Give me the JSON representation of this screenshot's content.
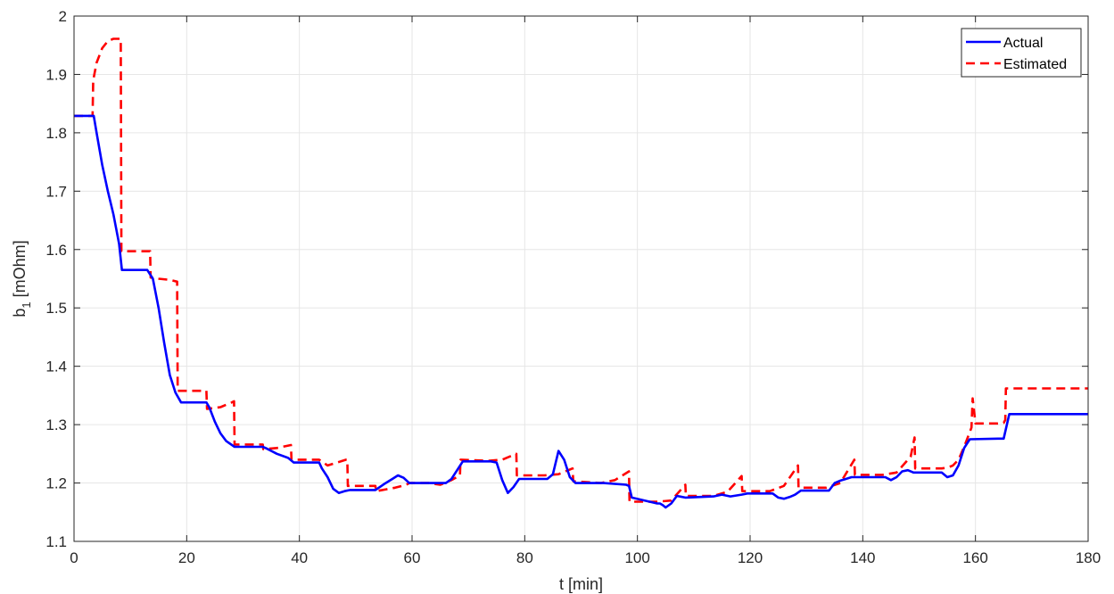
{
  "chart_data": {
    "type": "line",
    "xlabel": "t [min]",
    "ylabel_main": "b",
    "ylabel_sub": "1",
    "ylabel_unit": " [mOhm]",
    "xlim": [
      0,
      180
    ],
    "ylim": [
      1.1,
      2.0
    ],
    "xticks": [
      0,
      20,
      40,
      60,
      80,
      100,
      120,
      140,
      160,
      180
    ],
    "xtick_labels": [
      "0",
      "20",
      "40",
      "60",
      "80",
      "100",
      "120",
      "140",
      "160",
      "180"
    ],
    "yticks": [
      1.1,
      1.2,
      1.3,
      1.4,
      1.5,
      1.6,
      1.7,
      1.8,
      1.9,
      2.0
    ],
    "ytick_labels": [
      "1.1",
      "1.2",
      "1.3",
      "1.4",
      "1.5",
      "1.6",
      "1.7",
      "1.8",
      "1.9",
      "2"
    ],
    "grid": true,
    "legend_position": "top-right",
    "series": [
      {
        "name": "Actual",
        "color": "#0000ff",
        "style": "solid",
        "x": [
          0,
          3.5,
          4,
          5,
          6,
          7,
          8,
          8.5,
          13,
          14,
          15,
          16,
          17,
          18,
          19,
          23.5,
          24,
          25,
          26,
          27,
          28.5,
          33.5,
          34,
          36,
          38,
          39,
          43.5,
          44,
          45,
          46,
          47,
          48,
          49,
          53.5,
          55,
          56.5,
          57.5,
          58.5,
          59.5,
          64,
          65,
          66,
          67,
          68,
          69,
          74,
          75,
          76,
          77,
          78,
          79,
          84,
          85,
          86,
          87,
          88,
          89,
          94,
          98,
          98.5,
          99,
          103.5,
          104,
          104.5,
          105,
          106,
          107,
          108.5,
          113.5,
          115,
          116.5,
          118.5,
          119.5,
          124,
          125,
          126,
          127,
          128,
          129,
          134,
          135,
          136,
          137,
          138,
          139,
          144,
          145,
          146,
          147,
          148,
          149,
          150,
          154,
          155,
          156,
          157,
          158,
          159,
          164,
          165,
          166,
          180
        ],
        "y": [
          1.829,
          1.829,
          1.8,
          1.745,
          1.7,
          1.66,
          1.61,
          1.565,
          1.565,
          1.55,
          1.5,
          1.44,
          1.385,
          1.355,
          1.338,
          1.338,
          1.33,
          1.305,
          1.285,
          1.272,
          1.262,
          1.262,
          1.26,
          1.25,
          1.243,
          1.235,
          1.235,
          1.225,
          1.21,
          1.19,
          1.183,
          1.186,
          1.188,
          1.188,
          1.198,
          1.207,
          1.213,
          1.209,
          1.2,
          1.2,
          1.2,
          1.2,
          1.207,
          1.222,
          1.237,
          1.237,
          1.235,
          1.205,
          1.183,
          1.193,
          1.207,
          1.207,
          1.215,
          1.255,
          1.24,
          1.21,
          1.2,
          1.2,
          1.197,
          1.195,
          1.175,
          1.165,
          1.165,
          1.162,
          1.158,
          1.165,
          1.178,
          1.175,
          1.177,
          1.18,
          1.177,
          1.18,
          1.182,
          1.182,
          1.175,
          1.173,
          1.176,
          1.18,
          1.187,
          1.187,
          1.2,
          1.204,
          1.207,
          1.21,
          1.21,
          1.21,
          1.205,
          1.21,
          1.22,
          1.222,
          1.218,
          1.218,
          1.218,
          1.21,
          1.213,
          1.23,
          1.26,
          1.275,
          1.276,
          1.276,
          1.318,
          1.318
        ]
      },
      {
        "name": "Estimated",
        "color": "#ff0000",
        "style": "dashed",
        "x": [
          0,
          3.3,
          3.4,
          4,
          5,
          6,
          7,
          8.3,
          8.4,
          13.5,
          13.6,
          15,
          17,
          18.3,
          18.4,
          23.5,
          23.6,
          26,
          28,
          28.4,
          28.5,
          33.5,
          33.6,
          36,
          38.5,
          38.6,
          43.5,
          45,
          48.3,
          48.5,
          48.6,
          53.5,
          53.6,
          57,
          59,
          59.5,
          63,
          65,
          67,
          68.5,
          68.6,
          73.5,
          76,
          78.5,
          78.6,
          83.5,
          86,
          88.5,
          88.6,
          93.5,
          96,
          98.5,
          98.6,
          103.5,
          106,
          108.5,
          108.6,
          113.5,
          116,
          118.5,
          118.6,
          123.5,
          126,
          128.5,
          128.6,
          133.5,
          136,
          138.5,
          138.6,
          143.5,
          146,
          148.5,
          149.2,
          149.3,
          154,
          155,
          156,
          157,
          158,
          159.3,
          159.5,
          160,
          164,
          165,
          165.3,
          165.4,
          180
        ],
        "y": [
          1.829,
          1.829,
          1.89,
          1.92,
          1.945,
          1.957,
          1.961,
          1.961,
          1.597,
          1.597,
          1.552,
          1.55,
          1.548,
          1.545,
          1.358,
          1.358,
          1.327,
          1.33,
          1.338,
          1.34,
          1.266,
          1.266,
          1.258,
          1.26,
          1.265,
          1.24,
          1.24,
          1.23,
          1.24,
          1.24,
          1.195,
          1.195,
          1.186,
          1.192,
          1.197,
          1.2,
          1.2,
          1.197,
          1.205,
          1.213,
          1.24,
          1.238,
          1.24,
          1.25,
          1.213,
          1.213,
          1.215,
          1.225,
          1.203,
          1.2,
          1.205,
          1.22,
          1.168,
          1.168,
          1.17,
          1.197,
          1.178,
          1.178,
          1.185,
          1.212,
          1.186,
          1.186,
          1.195,
          1.23,
          1.192,
          1.192,
          1.2,
          1.24,
          1.214,
          1.214,
          1.218,
          1.245,
          1.278,
          1.225,
          1.225,
          1.226,
          1.23,
          1.24,
          1.262,
          1.295,
          1.345,
          1.302,
          1.302,
          1.303,
          1.308,
          1.362,
          1.362
        ]
      }
    ]
  }
}
